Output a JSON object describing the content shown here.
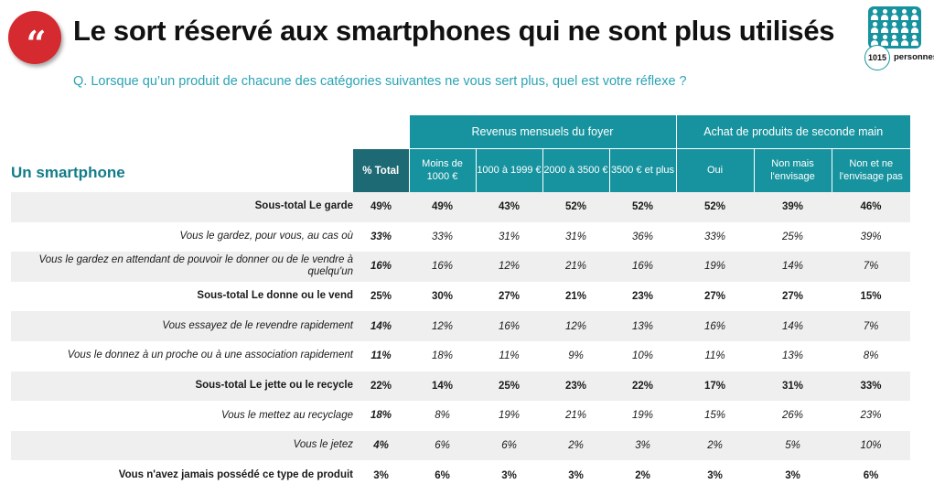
{
  "header": {
    "quote_glyph": "“",
    "title": "Le sort réservé aux smartphones qui ne sont plus utilisés",
    "question": "Q. Lorsque qu’un produit de chacune des catégories suivantes ne vous sert plus, quel est votre réflexe ?",
    "sample_count": "1015",
    "sample_label": "personnes"
  },
  "colors": {
    "accent_red": "#d42a30",
    "teal": "#17939f",
    "dark_teal": "#1e6a74",
    "question_teal": "#2aa3b4",
    "row_shade": "#efefef"
  },
  "icons": {
    "quote": "quote-icon",
    "people": "people-group-icon"
  },
  "table": {
    "section_label": "Un smartphone",
    "groups": [
      {
        "label": "Revenus mensuels du foyer"
      },
      {
        "label": "Achat de produits de seconde main"
      }
    ],
    "total_header": "% Total",
    "subheaders": [
      "Moins de 1000 €",
      "1000 à 1999 €",
      "2000 à 3500 €",
      "3500 € et plus",
      "Oui",
      "Non mais l'envisage",
      "Non et ne l'envisage pas"
    ],
    "rows": [
      {
        "label": "Sous-total Le garde",
        "total": "49%",
        "values": [
          "49%",
          "43%",
          "52%",
          "52%",
          "52%",
          "39%",
          "46%"
        ]
      },
      {
        "label": "Vous le gardez, pour vous, au cas où",
        "total": "33%",
        "values": [
          "33%",
          "31%",
          "31%",
          "36%",
          "33%",
          "25%",
          "39%"
        ]
      },
      {
        "label": "Vous le gardez en attendant de pouvoir le donner ou de le vendre à quelqu'un",
        "total": "16%",
        "values": [
          "16%",
          "12%",
          "21%",
          "16%",
          "19%",
          "14%",
          "7%"
        ]
      },
      {
        "label": "Sous-total Le donne ou le vend",
        "total": "25%",
        "values": [
          "30%",
          "27%",
          "21%",
          "23%",
          "27%",
          "27%",
          "15%"
        ]
      },
      {
        "label": "Vous essayez de le revendre rapidement",
        "total": "14%",
        "values": [
          "12%",
          "16%",
          "12%",
          "13%",
          "16%",
          "14%",
          "7%"
        ]
      },
      {
        "label": "Vous le donnez à un proche ou à une association rapidement",
        "total": "11%",
        "values": [
          "18%",
          "11%",
          "9%",
          "10%",
          "11%",
          "13%",
          "8%"
        ]
      },
      {
        "label": "Sous-total Le jette ou le recycle",
        "total": "22%",
        "values": [
          "14%",
          "25%",
          "23%",
          "22%",
          "17%",
          "31%",
          "33%"
        ]
      },
      {
        "label": "Vous le mettez au recyclage",
        "total": "18%",
        "values": [
          "8%",
          "19%",
          "21%",
          "19%",
          "15%",
          "26%",
          "23%"
        ]
      },
      {
        "label": "Vous le jetez",
        "total": "4%",
        "values": [
          "6%",
          "6%",
          "2%",
          "3%",
          "2%",
          "5%",
          "10%"
        ]
      },
      {
        "label": "Vous n'avez jamais possédé ce type de produit",
        "total": "3%",
        "values": [
          "6%",
          "3%",
          "3%",
          "2%",
          "3%",
          "3%",
          "6%"
        ]
      }
    ]
  }
}
